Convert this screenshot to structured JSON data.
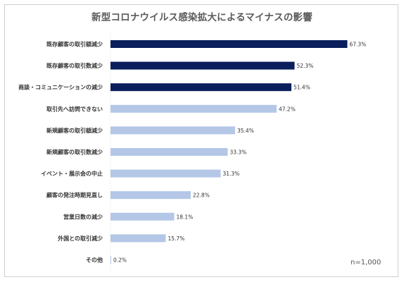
{
  "chart_data": {
    "type": "bar",
    "orientation": "horizontal",
    "title": "新型コロナウイルス感染拡大によるマイナスの影響",
    "categories": [
      "既存顧客の取引額減少",
      "既存顧客の取引数減少",
      "商談・コミュニケーションの減少",
      "取引先へ訪問できない",
      "新規顧客の取引額減少",
      "新規顧客の取引数減少",
      "イベント・展示会の中止",
      "顧客の発注時期見直し",
      "営業日数の減少",
      "外国との取引減少",
      "その他"
    ],
    "values": [
      67.3,
      52.3,
      51.4,
      47.2,
      35.4,
      33.3,
      31.3,
      22.8,
      18.1,
      15.7,
      0.2
    ],
    "value_labels": [
      "67.3%",
      "52.3%",
      "51.4%",
      "47.2%",
      "35.4%",
      "33.3%",
      "31.3%",
      "22.8%",
      "18.1%",
      "15.7%",
      "0.2%"
    ],
    "highlight_count": 3,
    "xlim": [
      0,
      100
    ],
    "grid": false,
    "xlabel": "",
    "ylabel": "",
    "note": "n=1,000"
  },
  "colors": {
    "highlight": "#0a1f5c",
    "normal": "#b4c7e7",
    "frame": "#cfcfcf",
    "title": "#5a5a5a"
  }
}
